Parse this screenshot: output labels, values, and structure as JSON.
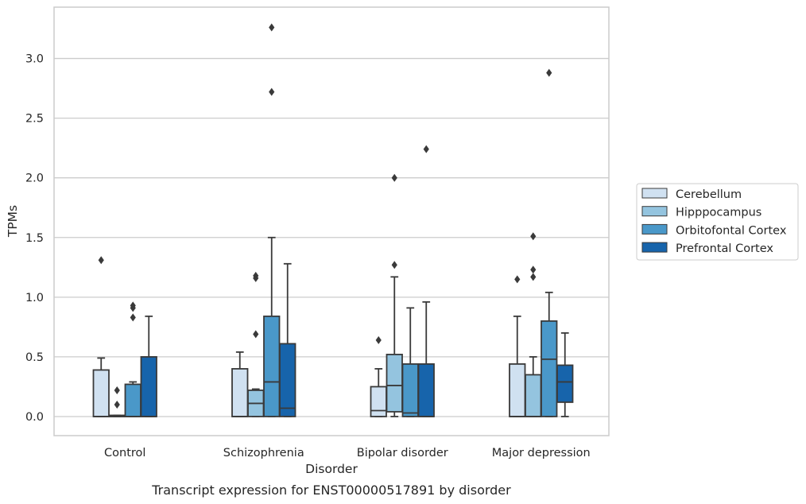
{
  "caption": "Transcript expression for ENST00000517891 by disorder",
  "chart_data": {
    "type": "box",
    "xlabel": "Disorder",
    "ylabel": "TPMs",
    "ylim": [
      -0.16,
      3.43
    ],
    "yticks": [
      "0.0",
      "0.5",
      "1.0",
      "1.5",
      "2.0",
      "2.5",
      "3.0"
    ],
    "grid": "horizontal",
    "legend_position": "right",
    "categories": [
      "Control",
      "Schizophrenia",
      "Bipolar disorder",
      "Major depression"
    ],
    "series": [
      {
        "name": "Cerebellum",
        "color": "#d0e1f1",
        "boxes": [
          {
            "whislo": 0.0,
            "q1": 0.0,
            "med": 0.0,
            "q3": 0.39,
            "whishi": 0.49,
            "fliers": [
              1.31
            ]
          },
          {
            "whislo": 0.0,
            "q1": 0.0,
            "med": 0.0,
            "q3": 0.4,
            "whishi": 0.54,
            "fliers": []
          },
          {
            "whislo": 0.0,
            "q1": 0.0,
            "med": 0.05,
            "q3": 0.25,
            "whishi": 0.4,
            "fliers": [
              0.64
            ]
          },
          {
            "whislo": 0.0,
            "q1": 0.0,
            "med": 0.0,
            "q3": 0.44,
            "whishi": 0.84,
            "fliers": [
              1.15
            ]
          }
        ]
      },
      {
        "name": "Hipppocampus",
        "color": "#94c4df",
        "boxes": [
          {
            "whislo": 0.0,
            "q1": 0.0,
            "med": 0.0,
            "q3": 0.01,
            "whishi": 0.01,
            "fliers": [
              0.22,
              0.1
            ]
          },
          {
            "whislo": 0.0,
            "q1": 0.0,
            "med": 0.11,
            "q3": 0.22,
            "whishi": 0.23,
            "fliers": [
              1.18,
              1.16,
              0.69
            ]
          },
          {
            "whislo": 0.0,
            "q1": 0.04,
            "med": 0.26,
            "q3": 0.52,
            "whishi": 1.17,
            "fliers": [
              2.0,
              1.27
            ]
          },
          {
            "whislo": 0.0,
            "q1": 0.0,
            "med": 0.0,
            "q3": 0.35,
            "whishi": 0.5,
            "fliers": [
              1.51,
              1.23,
              1.17
            ]
          }
        ]
      },
      {
        "name": "Orbitofontal Cortex",
        "color": "#4a98c9",
        "boxes": [
          {
            "whislo": 0.0,
            "q1": 0.0,
            "med": 0.0,
            "q3": 0.27,
            "whishi": 0.29,
            "fliers": [
              0.93,
              0.91,
              0.83
            ]
          },
          {
            "whislo": 0.0,
            "q1": 0.0,
            "med": 0.29,
            "q3": 0.84,
            "whishi": 1.5,
            "fliers": [
              3.26,
              2.72
            ]
          },
          {
            "whislo": 0.0,
            "q1": 0.0,
            "med": 0.03,
            "q3": 0.44,
            "whishi": 0.91,
            "fliers": []
          },
          {
            "whislo": 0.0,
            "q1": 0.0,
            "med": 0.48,
            "q3": 0.8,
            "whishi": 1.04,
            "fliers": [
              2.88
            ]
          }
        ]
      },
      {
        "name": "Prefrontal Cortex",
        "color": "#1764ab",
        "boxes": [
          {
            "whislo": 0.0,
            "q1": 0.0,
            "med": 0.0,
            "q3": 0.5,
            "whishi": 0.84,
            "fliers": []
          },
          {
            "whislo": 0.0,
            "q1": 0.0,
            "med": 0.07,
            "q3": 0.61,
            "whishi": 1.28,
            "fliers": []
          },
          {
            "whislo": 0.0,
            "q1": 0.0,
            "med": 0.0,
            "q3": 0.44,
            "whishi": 0.96,
            "fliers": [
              2.24
            ]
          },
          {
            "whislo": 0.0,
            "q1": 0.12,
            "med": 0.29,
            "q3": 0.43,
            "whishi": 0.7,
            "fliers": []
          }
        ]
      }
    ]
  }
}
